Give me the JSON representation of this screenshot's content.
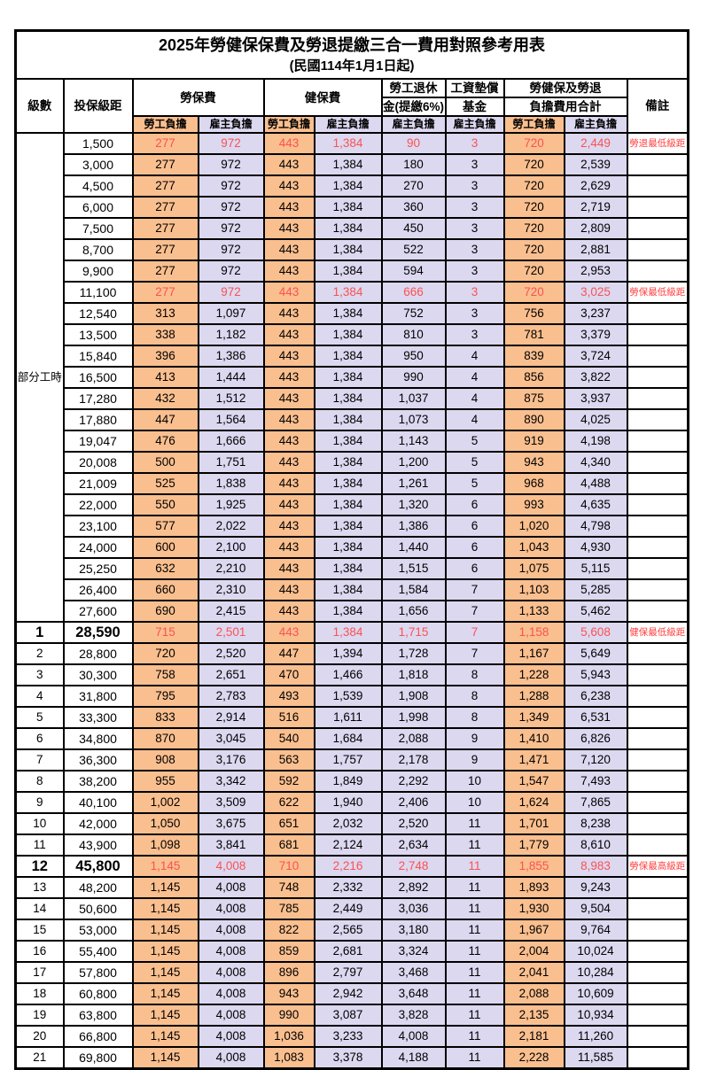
{
  "title": "2025年勞健保保費及勞退提繳三合一費用對照參考用表",
  "subtitle": "(民國114年1月1日起)",
  "columns": {
    "level": "級數",
    "bracket": "投保級距",
    "labor": "勞保費",
    "health": "健保費",
    "pension_l1": "勞工退休",
    "pension_l2": "金(提繳6%)",
    "fund_l1": "工資墊償",
    "fund_l2": "基金",
    "total_l1": "勞健保及勞退",
    "total_l2": "負擔費用合計",
    "remark": "備註",
    "employee_share": "勞工負擔",
    "employer_share": "雇主負擔"
  },
  "part_time": {
    "label": "部分工時",
    "row_span": 23
  },
  "colors": {
    "employee_bg": "#FABF8F",
    "employer_bg": "#DCD8F0",
    "highlight_text": "#FA5252",
    "remark_text": "#FF4040",
    "border": "#000000"
  },
  "rows": [
    {
      "b": "1,500",
      "v": [
        "277",
        "972",
        "443",
        "1,384",
        "90",
        "3",
        "720",
        "2,449"
      ],
      "r": "勞退最低級距",
      "hl": 1
    },
    {
      "b": "3,000",
      "v": [
        "277",
        "972",
        "443",
        "1,384",
        "180",
        "3",
        "720",
        "2,539"
      ],
      "r": ""
    },
    {
      "b": "4,500",
      "v": [
        "277",
        "972",
        "443",
        "1,384",
        "270",
        "3",
        "720",
        "2,629"
      ],
      "r": ""
    },
    {
      "b": "6,000",
      "v": [
        "277",
        "972",
        "443",
        "1,384",
        "360",
        "3",
        "720",
        "2,719"
      ],
      "r": ""
    },
    {
      "b": "7,500",
      "v": [
        "277",
        "972",
        "443",
        "1,384",
        "450",
        "3",
        "720",
        "2,809"
      ],
      "r": ""
    },
    {
      "b": "8,700",
      "v": [
        "277",
        "972",
        "443",
        "1,384",
        "522",
        "3",
        "720",
        "2,881"
      ],
      "r": ""
    },
    {
      "b": "9,900",
      "v": [
        "277",
        "972",
        "443",
        "1,384",
        "594",
        "3",
        "720",
        "2,953"
      ],
      "r": ""
    },
    {
      "b": "11,100",
      "v": [
        "277",
        "972",
        "443",
        "1,384",
        "666",
        "3",
        "720",
        "3,025"
      ],
      "r": "勞保最低級距",
      "hl": 1
    },
    {
      "b": "12,540",
      "v": [
        "313",
        "1,097",
        "443",
        "1,384",
        "752",
        "3",
        "756",
        "3,237"
      ],
      "r": ""
    },
    {
      "b": "13,500",
      "v": [
        "338",
        "1,182",
        "443",
        "1,384",
        "810",
        "3",
        "781",
        "3,379"
      ],
      "r": ""
    },
    {
      "b": "15,840",
      "v": [
        "396",
        "1,386",
        "443",
        "1,384",
        "950",
        "4",
        "839",
        "3,724"
      ],
      "r": ""
    },
    {
      "b": "16,500",
      "v": [
        "413",
        "1,444",
        "443",
        "1,384",
        "990",
        "4",
        "856",
        "3,822"
      ],
      "r": ""
    },
    {
      "b": "17,280",
      "v": [
        "432",
        "1,512",
        "443",
        "1,384",
        "1,037",
        "4",
        "875",
        "3,937"
      ],
      "r": ""
    },
    {
      "b": "17,880",
      "v": [
        "447",
        "1,564",
        "443",
        "1,384",
        "1,073",
        "4",
        "890",
        "4,025"
      ],
      "r": ""
    },
    {
      "b": "19,047",
      "v": [
        "476",
        "1,666",
        "443",
        "1,384",
        "1,143",
        "5",
        "919",
        "4,198"
      ],
      "r": ""
    },
    {
      "b": "20,008",
      "v": [
        "500",
        "1,751",
        "443",
        "1,384",
        "1,200",
        "5",
        "943",
        "4,340"
      ],
      "r": ""
    },
    {
      "b": "21,009",
      "v": [
        "525",
        "1,838",
        "443",
        "1,384",
        "1,261",
        "5",
        "968",
        "4,488"
      ],
      "r": ""
    },
    {
      "b": "22,000",
      "v": [
        "550",
        "1,925",
        "443",
        "1,384",
        "1,320",
        "6",
        "993",
        "4,635"
      ],
      "r": ""
    },
    {
      "b": "23,100",
      "v": [
        "577",
        "2,022",
        "443",
        "1,384",
        "1,386",
        "6",
        "1,020",
        "4,798"
      ],
      "r": ""
    },
    {
      "b": "24,000",
      "v": [
        "600",
        "2,100",
        "443",
        "1,384",
        "1,440",
        "6",
        "1,043",
        "4,930"
      ],
      "r": ""
    },
    {
      "b": "25,250",
      "v": [
        "632",
        "2,210",
        "443",
        "1,384",
        "1,515",
        "6",
        "1,075",
        "5,115"
      ],
      "r": ""
    },
    {
      "b": "26,400",
      "v": [
        "660",
        "2,310",
        "443",
        "1,384",
        "1,584",
        "7",
        "1,103",
        "5,285"
      ],
      "r": ""
    },
    {
      "b": "27,600",
      "v": [
        "690",
        "2,415",
        "443",
        "1,384",
        "1,656",
        "7",
        "1,133",
        "5,462"
      ],
      "r": ""
    },
    {
      "lv": "1",
      "b": "28,590",
      "v": [
        "715",
        "2,501",
        "443",
        "1,384",
        "1,715",
        "7",
        "1,158",
        "5,608"
      ],
      "r": "健保最低級距",
      "hl": 1,
      "big": 1
    },
    {
      "lv": "2",
      "b": "28,800",
      "v": [
        "720",
        "2,520",
        "447",
        "1,394",
        "1,728",
        "7",
        "1,167",
        "5,649"
      ],
      "r": ""
    },
    {
      "lv": "3",
      "b": "30,300",
      "v": [
        "758",
        "2,651",
        "470",
        "1,466",
        "1,818",
        "8",
        "1,228",
        "5,943"
      ],
      "r": ""
    },
    {
      "lv": "4",
      "b": "31,800",
      "v": [
        "795",
        "2,783",
        "493",
        "1,539",
        "1,908",
        "8",
        "1,288",
        "6,238"
      ],
      "r": ""
    },
    {
      "lv": "5",
      "b": "33,300",
      "v": [
        "833",
        "2,914",
        "516",
        "1,611",
        "1,998",
        "8",
        "1,349",
        "6,531"
      ],
      "r": ""
    },
    {
      "lv": "6",
      "b": "34,800",
      "v": [
        "870",
        "3,045",
        "540",
        "1,684",
        "2,088",
        "9",
        "1,410",
        "6,826"
      ],
      "r": ""
    },
    {
      "lv": "7",
      "b": "36,300",
      "v": [
        "908",
        "3,176",
        "563",
        "1,757",
        "2,178",
        "9",
        "1,471",
        "7,120"
      ],
      "r": ""
    },
    {
      "lv": "8",
      "b": "38,200",
      "v": [
        "955",
        "3,342",
        "592",
        "1,849",
        "2,292",
        "10",
        "1,547",
        "7,493"
      ],
      "r": ""
    },
    {
      "lv": "9",
      "b": "40,100",
      "v": [
        "1,002",
        "3,509",
        "622",
        "1,940",
        "2,406",
        "10",
        "1,624",
        "7,865"
      ],
      "r": ""
    },
    {
      "lv": "10",
      "b": "42,000",
      "v": [
        "1,050",
        "3,675",
        "651",
        "2,032",
        "2,520",
        "11",
        "1,701",
        "8,238"
      ],
      "r": ""
    },
    {
      "lv": "11",
      "b": "43,900",
      "v": [
        "1,098",
        "3,841",
        "681",
        "2,124",
        "2,634",
        "11",
        "1,779",
        "8,610"
      ],
      "r": ""
    },
    {
      "lv": "12",
      "b": "45,800",
      "v": [
        "1,145",
        "4,008",
        "710",
        "2,216",
        "2,748",
        "11",
        "1,855",
        "8,983"
      ],
      "r": "勞保最高級距",
      "hl": 1,
      "big": 1
    },
    {
      "lv": "13",
      "b": "48,200",
      "v": [
        "1,145",
        "4,008",
        "748",
        "2,332",
        "2,892",
        "11",
        "1,893",
        "9,243"
      ],
      "r": ""
    },
    {
      "lv": "14",
      "b": "50,600",
      "v": [
        "1,145",
        "4,008",
        "785",
        "2,449",
        "3,036",
        "11",
        "1,930",
        "9,504"
      ],
      "r": ""
    },
    {
      "lv": "15",
      "b": "53,000",
      "v": [
        "1,145",
        "4,008",
        "822",
        "2,565",
        "3,180",
        "11",
        "1,967",
        "9,764"
      ],
      "r": ""
    },
    {
      "lv": "16",
      "b": "55,400",
      "v": [
        "1,145",
        "4,008",
        "859",
        "2,681",
        "3,324",
        "11",
        "2,004",
        "10,024"
      ],
      "r": ""
    },
    {
      "lv": "17",
      "b": "57,800",
      "v": [
        "1,145",
        "4,008",
        "896",
        "2,797",
        "3,468",
        "11",
        "2,041",
        "10,284"
      ],
      "r": ""
    },
    {
      "lv": "18",
      "b": "60,800",
      "v": [
        "1,145",
        "4,008",
        "943",
        "2,942",
        "3,648",
        "11",
        "2,088",
        "10,609"
      ],
      "r": ""
    },
    {
      "lv": "19",
      "b": "63,800",
      "v": [
        "1,145",
        "4,008",
        "990",
        "3,087",
        "3,828",
        "11",
        "2,135",
        "10,934"
      ],
      "r": ""
    },
    {
      "lv": "20",
      "b": "66,800",
      "v": [
        "1,145",
        "4,008",
        "1,036",
        "3,233",
        "4,008",
        "11",
        "2,181",
        "11,260"
      ],
      "r": ""
    },
    {
      "lv": "21",
      "b": "69,800",
      "v": [
        "1,145",
        "4,008",
        "1,083",
        "3,378",
        "4,188",
        "11",
        "2,228",
        "11,585"
      ],
      "r": ""
    }
  ]
}
